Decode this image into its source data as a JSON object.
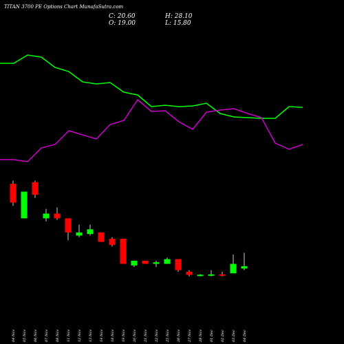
{
  "title": "TITAN 3700 PE Options Chart MunafaSutra.com",
  "ohlc": {
    "c": "C: 20.60",
    "h": "H: 28.10",
    "o": "O: 19.00",
    "l": "L: 15.80"
  },
  "colors": {
    "up": "#00ff00",
    "down": "#ff0000",
    "line_green": "#00ff00",
    "line_magenta": "#cc00cc",
    "background": "#000000",
    "text": "#ffffff"
  },
  "chart_data": {
    "type": "candlestick",
    "title": "TITAN 3700 PE Options Chart MunafaSutra.com",
    "price_range": [
      12,
      90
    ],
    "candles": [
      {
        "date": "04 Nov",
        "open": 86,
        "high": 88,
        "low": 72,
        "close": 74
      },
      {
        "date": "05 Nov",
        "open": 64,
        "high": 81,
        "low": 64,
        "close": 81
      },
      {
        "date": "06 Nov",
        "open": 87,
        "high": 88,
        "low": 77,
        "close": 79
      },
      {
        "date": "07 Nov",
        "open": 64,
        "high": 70,
        "low": 62,
        "close": 67
      },
      {
        "date": "08 Nov",
        "open": 67,
        "high": 71,
        "low": 63,
        "close": 64
      },
      {
        "date": "11 Nov",
        "open": 64,
        "high": 64,
        "low": 50,
        "close": 55
      },
      {
        "date": "12 Nov",
        "open": 53,
        "high": 60,
        "low": 52,
        "close": 55
      },
      {
        "date": "13 Nov",
        "open": 54,
        "high": 60,
        "low": 53,
        "close": 57
      },
      {
        "date": "14 Nov",
        "open": 55,
        "high": 55,
        "low": 49,
        "close": 49
      },
      {
        "date": "18 Nov",
        "open": 51,
        "high": 52,
        "low": 46,
        "close": 47
      },
      {
        "date": "19 Nov",
        "open": 51,
        "high": 51,
        "low": 35,
        "close": 35
      },
      {
        "date": "20 Nov",
        "open": 34,
        "high": 37,
        "low": 33,
        "close": 37
      },
      {
        "date": "21 Nov",
        "open": 37,
        "high": 37,
        "low": 35,
        "close": 35
      },
      {
        "date": "22 Nov",
        "open": 35,
        "high": 37,
        "low": 33,
        "close": 36
      },
      {
        "date": "25 Nov",
        "open": 35,
        "high": 39,
        "low": 35,
        "close": 38
      },
      {
        "date": "26 Nov",
        "open": 38,
        "high": 38,
        "low": 30,
        "close": 31
      },
      {
        "date": "27 Nov",
        "open": 30,
        "high": 31,
        "low": 27,
        "close": 28
      },
      {
        "date": "28 Nov",
        "open": 27.5,
        "high": 28.5,
        "low": 27,
        "close": 28.1
      },
      {
        "date": "01 Dec",
        "open": 27.8,
        "high": 31,
        "low": 27,
        "close": 28.3
      },
      {
        "date": "02 Dec",
        "open": 28.3,
        "high": 30,
        "low": 27,
        "close": 27.6
      },
      {
        "date": "03 Dec",
        "open": 29,
        "high": 41,
        "low": 29,
        "close": 35
      },
      {
        "date": "04 Dec",
        "open": 32,
        "high": 42,
        "low": 31,
        "close": 33.5
      }
    ],
    "lines": [
      {
        "color": "#00ff00",
        "values": [
          92,
          92,
          80,
          83,
          98,
          104,
          119,
          122,
          120,
          134,
          138,
          155,
          153,
          155,
          154,
          150,
          165,
          170,
          171,
          172,
          172,
          155,
          156
        ]
      },
      {
        "color": "#cc00cc",
        "values": [
          232,
          232,
          235,
          215,
          210,
          190,
          196,
          202,
          181,
          175,
          145,
          162,
          161,
          177,
          188,
          163,
          160,
          158,
          165,
          171,
          208,
          217,
          210
        ]
      }
    ]
  }
}
